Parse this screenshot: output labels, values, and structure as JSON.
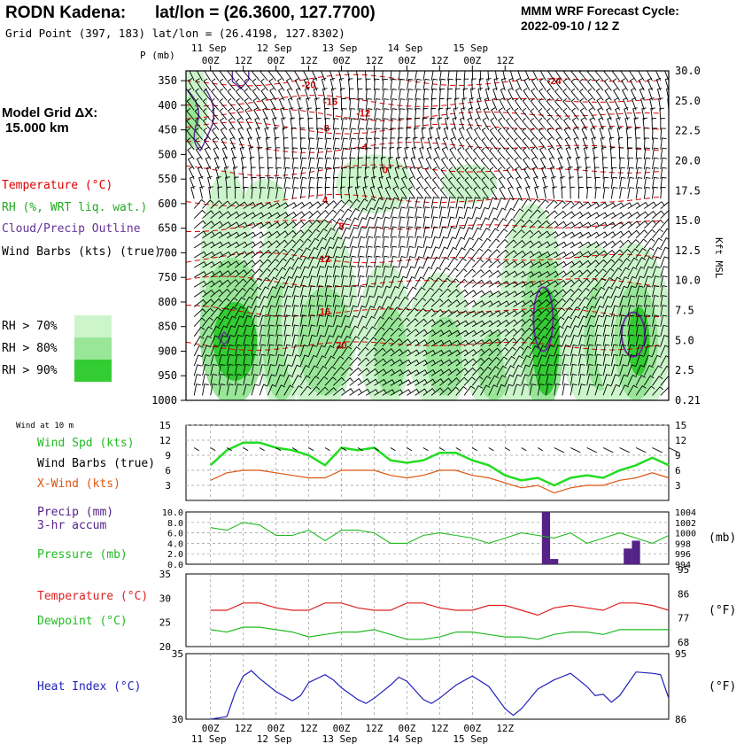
{
  "header": {
    "station": "RODN Kadena:",
    "latlon": "lat/lon = (26.3600, 127.7700)",
    "gridpoint": "Grid Point (397, 183) lat/lon = (26.4198, 127.8302)",
    "cycle_line1": "MMM WRF Forecast Cycle:",
    "cycle_line2": "2022-09-10 / 12  Z"
  },
  "model_grid": {
    "line1": "Model Grid ΔX:",
    "line2": "15.000 km"
  },
  "legend_upper": {
    "temperature": "Temperature (°C)",
    "rh": "RH (%, WRT liq. wat.)",
    "cloud": "Cloud/Precip Outline",
    "barbs": "Wind Barbs (kts) (true)",
    "rh70": "RH > 70%",
    "rh80": "RH > 80%",
    "rh90": "RH > 90%"
  },
  "colors": {
    "rh70": "#ccf5cc",
    "rh80": "#99e699",
    "rh90": "#33cc33",
    "temp": "#dd0000",
    "cloud": "#663399",
    "wind": "#22dd22",
    "xwind": "#dd5511",
    "pressure": "#22bb22",
    "precip": "#552288",
    "temp2": "#dd2222",
    "dew": "#22bb22",
    "heat": "#2222bb"
  },
  "time_axis": {
    "top_days": [
      "11 Sep",
      "12 Sep",
      "13 Sep",
      "14 Sep",
      "15 Sep"
    ],
    "hours": [
      "00Z",
      "12Z",
      "00Z",
      "12Z",
      "00Z",
      "12Z",
      "00Z",
      "12Z",
      "00Z",
      "12Z"
    ],
    "bottom_days": [
      "11 Sep",
      "12 Sep",
      "13 Sep",
      "14 Sep",
      "15 Sep"
    ]
  },
  "chart_data": [
    {
      "type": "heatmap",
      "panel": "sounding",
      "xlabel": "",
      "ylabel": "P (mb)",
      "right_label": "Kft MSL",
      "pressure_ticks": [
        350,
        400,
        450,
        500,
        550,
        600,
        650,
        700,
        750,
        800,
        850,
        900,
        950,
        1000
      ],
      "kft_ticks": [
        "30.0",
        "25.0",
        "22.5",
        "20.0",
        "17.5",
        "15.0",
        "12.5",
        "10.0",
        "7.5",
        "5.0",
        "2.5",
        "0.21"
      ],
      "temperature_labels": [
        {
          "value": "-24",
          "time_h": 126,
          "p": 350
        },
        {
          "value": "-20",
          "time_h": 36,
          "p": 358
        },
        {
          "value": "-16",
          "time_h": 44,
          "p": 392
        },
        {
          "value": "-12",
          "time_h": 56,
          "p": 416
        },
        {
          "value": "-8",
          "time_h": 42,
          "p": 446
        },
        {
          "value": "-4",
          "time_h": 56,
          "p": 484
        },
        {
          "value": "0",
          "time_h": 64,
          "p": 531
        },
        {
          "value": "4",
          "time_h": 42,
          "p": 592
        },
        {
          "value": "8",
          "time_h": 48,
          "p": 645
        },
        {
          "value": "12",
          "time_h": 42,
          "p": 712
        },
        {
          "value": "16",
          "time_h": 42,
          "p": 819
        },
        {
          "value": "20",
          "time_h": 48,
          "p": 887
        }
      ]
    },
    {
      "type": "line",
      "panel": "wind",
      "title": "Wind at 10 m",
      "ylim": [
        0,
        15
      ],
      "yticks": [
        3,
        6,
        9,
        12,
        15
      ],
      "series": [
        {
          "name": "Wind Spd (kts)",
          "x": [
            0,
            6,
            12,
            18,
            24,
            30,
            36,
            42,
            48,
            54,
            60,
            66,
            72,
            78,
            84,
            90,
            96,
            102,
            108,
            114,
            120,
            126,
            132,
            138,
            144,
            150,
            156,
            162,
            168
          ],
          "values": [
            7,
            10,
            11.5,
            11.5,
            10.5,
            10,
            9,
            7,
            10.5,
            10,
            10.5,
            8,
            7.5,
            8,
            9.5,
            9.5,
            8,
            7,
            5,
            4,
            4.5,
            3,
            4.5,
            5,
            4.5,
            6,
            7,
            8.5,
            7
          ]
        },
        {
          "name": "X-Wind (kts)",
          "x": [
            0,
            6,
            12,
            18,
            24,
            30,
            36,
            42,
            48,
            54,
            60,
            66,
            72,
            78,
            84,
            90,
            96,
            102,
            108,
            114,
            120,
            126,
            132,
            138,
            144,
            150,
            156,
            162,
            168
          ],
          "values": [
            4,
            5.5,
            6,
            6,
            5.5,
            5,
            4.5,
            4.5,
            6,
            6,
            6,
            5,
            4.5,
            5,
            6,
            6,
            5,
            4.5,
            3.5,
            2.5,
            3,
            1.5,
            2.5,
            3,
            3,
            4,
            4.5,
            5.5,
            4.5
          ]
        }
      ]
    },
    {
      "type": "bar",
      "panel": "precip_pressure",
      "precip_label": "Precip (mm) 3-hr accum",
      "pressure_label": "Pressure (mb)",
      "precip_ylim": [
        0,
        10
      ],
      "precip_yticks": [
        "0.0",
        "2.0",
        "4.0",
        "6.0",
        "8.0",
        "10.0"
      ],
      "pressure_yticks": [
        "994",
        "996",
        "998",
        "1000",
        "1002",
        "1004"
      ],
      "pressure_ylim": [
        994,
        1004
      ],
      "precip_bars": [
        {
          "x": 123,
          "value": 10
        },
        {
          "x": 126,
          "value": 1
        },
        {
          "x": 153,
          "value": 3
        },
        {
          "x": 156,
          "value": 4.5
        }
      ],
      "pressure_x": [
        0,
        6,
        12,
        18,
        24,
        30,
        36,
        42,
        48,
        54,
        60,
        66,
        72,
        78,
        84,
        90,
        96,
        102,
        108,
        114,
        120,
        126,
        132,
        138,
        144,
        150,
        156,
        162,
        168
      ],
      "pressure_values": [
        1001,
        1000.5,
        1002,
        1001.5,
        999.5,
        999.5,
        1000.5,
        998.5,
        1000.5,
        1000.5,
        1000,
        998,
        998,
        999.5,
        1000,
        999.5,
        999,
        998,
        999,
        1000,
        999.5,
        999,
        1000,
        998,
        999,
        1000,
        999,
        998,
        999.5
      ],
      "units_right": "(mb)"
    },
    {
      "type": "line",
      "panel": "temperature",
      "ylim_c": [
        20,
        35
      ],
      "yticks_c": [
        "20",
        "25",
        "30",
        "35"
      ],
      "yticks_f": [
        "68",
        "77",
        "86",
        "95"
      ],
      "units_right": "(°F)",
      "series": [
        {
          "name": "Temperature (°C)",
          "x": [
            0,
            6,
            12,
            18,
            24,
            30,
            36,
            42,
            48,
            54,
            60,
            66,
            72,
            78,
            84,
            90,
            96,
            102,
            108,
            114,
            120,
            126,
            132,
            138,
            144,
            150,
            156,
            162,
            168
          ],
          "values": [
            27.5,
            27.5,
            29,
            29,
            28,
            27.5,
            27.5,
            29,
            29,
            28,
            27.5,
            27.5,
            29,
            29,
            28,
            27.5,
            27.5,
            28.5,
            28.5,
            27.5,
            26.5,
            28,
            28.5,
            28,
            27.5,
            29,
            29,
            28.5,
            27.5
          ]
        },
        {
          "name": "Dewpoint (°C)",
          "x": [
            0,
            6,
            12,
            18,
            24,
            30,
            36,
            42,
            48,
            54,
            60,
            66,
            72,
            78,
            84,
            90,
            96,
            102,
            108,
            114,
            120,
            126,
            132,
            138,
            144,
            150,
            156,
            162,
            168
          ],
          "values": [
            23.5,
            23,
            24,
            24,
            23.5,
            23,
            22,
            22.5,
            23,
            23,
            23.5,
            22.5,
            21.5,
            21.5,
            22,
            23,
            23,
            22.5,
            22,
            22,
            21.5,
            22.5,
            23,
            23,
            22.5,
            23.5,
            23.5,
            23.5,
            23.5
          ]
        }
      ]
    },
    {
      "type": "line",
      "panel": "heat_index",
      "ylim_c": [
        30,
        35
      ],
      "yticks_c": [
        "30",
        "35"
      ],
      "yticks_f": [
        "86",
        "95"
      ],
      "units_right": "(°F)",
      "series": [
        {
          "name": "Heat Index (°C)",
          "x": [
            0,
            6,
            9,
            12,
            15,
            18,
            21,
            24,
            30,
            33,
            36,
            42,
            45,
            48,
            54,
            57,
            60,
            66,
            69,
            72,
            78,
            81,
            84,
            90,
            96,
            102,
            108,
            111,
            114,
            120,
            126,
            132,
            138,
            141,
            144,
            147,
            150,
            156,
            162,
            165,
            168
          ],
          "values": [
            30,
            30.2,
            32,
            33.3,
            33.7,
            33.1,
            32.6,
            32.1,
            31.4,
            31.8,
            32.8,
            33.4,
            33,
            32.4,
            31.5,
            31.2,
            31.6,
            32.6,
            33.2,
            32.9,
            31.5,
            31.2,
            31.6,
            32.6,
            33.3,
            32.5,
            30.8,
            30.3,
            30.8,
            32.3,
            33,
            33.5,
            32.5,
            31.8,
            31.9,
            31.3,
            31.8,
            33.6,
            33.5,
            33.4,
            31.6
          ]
        }
      ]
    }
  ],
  "upper_labels": {
    "p_mb": "P (mb)",
    "kft": "Kft MSL"
  },
  "lower_labels": {
    "wind_at": "Wind at 10 m",
    "wind_spd": "Wind Spd (kts)",
    "wind_barbs": "Wind Barbs (true)",
    "xwind": "X-Wind (kts)",
    "precip": "Precip (mm)",
    "precip2": "3-hr accum",
    "pressure": "Pressure (mb)",
    "temperature": "Temperature (°C)",
    "dewpoint": "Dewpoint (°C)",
    "heat_index": "Heat Index (°C)",
    "mb": "(mb)",
    "degf1": "(°F)",
    "degf2": "(°F)"
  }
}
